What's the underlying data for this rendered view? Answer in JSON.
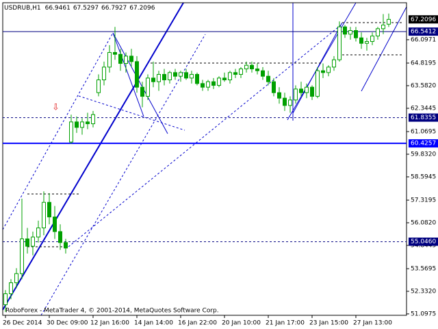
{
  "chart_data": {
    "type": "candlestick",
    "title": "USDRUB,H1",
    "header_values": [
      66.9461,
      67.5297,
      66.7927,
      67.2096
    ],
    "footer": "RoboForex - MetaTrader 4, © 2001-2014, MetaQuotes Software Corp.",
    "categories": [
      "26 Dec 2014",
      null,
      null,
      null,
      null,
      null,
      null,
      null,
      "30 Dec 09:00",
      null,
      null,
      null,
      null,
      null,
      null,
      null,
      "12 Jan 16:00",
      null,
      null,
      null,
      null,
      null,
      null,
      null,
      "14 Jan 14:00",
      null,
      null,
      null,
      null,
      null,
      null,
      null,
      "16 Jan 22:00",
      null,
      null,
      null,
      null,
      null,
      null,
      null,
      "20 Jan 10:00",
      null,
      null,
      null,
      null,
      null,
      null,
      null,
      "21 Jan 17:00",
      null,
      null,
      null,
      null,
      null,
      null,
      null,
      "23 Jan 15:00",
      null,
      null,
      null,
      null,
      null,
      null,
      null,
      "27 Jan 13:00",
      null,
      null,
      null,
      null,
      null,
      null
    ],
    "open": [
      51.6,
      52.2,
      52.8,
      53.3,
      55.2,
      54.8,
      55.3,
      55.8,
      57.2,
      56.4,
      55.6,
      55.0,
      60.5,
      61.6,
      61.3,
      61.6,
      61.5,
      63.2,
      63.9,
      64.6,
      65.4,
      65.3,
      64.8,
      65.2,
      64.9,
      63.5,
      63.0,
      64.0,
      63.8,
      64.2,
      63.9,
      64.3,
      64.1,
      64.3,
      64.0,
      64.2,
      63.7,
      63.5,
      63.8,
      63.6,
      64.0,
      63.9,
      64.3,
      64.2,
      64.5,
      64.7,
      64.5,
      64.4,
      64.1,
      63.8,
      63.2,
      62.9,
      62.5,
      62.8,
      63.4,
      63.2,
      63.5,
      63.0,
      64.4,
      64.3,
      64.6,
      65.0,
      66.8,
      66.4,
      66.6,
      66.2,
      65.9,
      66.0,
      66.3,
      66.7,
      66.9461
    ],
    "high": [
      52.4,
      53.0,
      53.6,
      57.4,
      55.8,
      55.6,
      56.2,
      57.8,
      57.7,
      57.0,
      56.0,
      55.2,
      62.0,
      61.9,
      61.8,
      62.1,
      62.2,
      64.2,
      64.9,
      65.8,
      66.8,
      65.6,
      65.4,
      65.6,
      65.2,
      63.8,
      64.2,
      64.9,
      64.4,
      64.5,
      64.4,
      64.5,
      64.4,
      64.5,
      64.4,
      64.3,
      63.9,
      63.9,
      64.0,
      64.1,
      64.3,
      64.4,
      64.5,
      64.6,
      64.9,
      64.9,
      64.8,
      64.6,
      64.4,
      64.0,
      63.5,
      63.2,
      63.0,
      63.6,
      63.8,
      63.7,
      63.6,
      64.6,
      64.8,
      64.7,
      65.2,
      67.1,
      66.9,
      66.8,
      66.8,
      66.5,
      66.2,
      66.5,
      66.8,
      67.5,
      67.5297
    ],
    "low": [
      51.2,
      51.9,
      52.5,
      53.0,
      54.4,
      54.3,
      55.0,
      55.4,
      56.0,
      55.2,
      54.6,
      54.4,
      60.4,
      61.0,
      60.9,
      61.2,
      61.3,
      63.0,
      63.6,
      64.3,
      65.0,
      64.4,
      64.3,
      64.6,
      63.2,
      62.4,
      62.8,
      63.5,
      63.3,
      63.6,
      63.7,
      63.9,
      63.8,
      63.9,
      63.7,
      63.6,
      63.3,
      63.3,
      63.4,
      63.5,
      63.8,
      63.7,
      64.0,
      64.0,
      64.3,
      64.3,
      64.2,
      63.9,
      63.6,
      63.0,
      62.6,
      62.2,
      62.1,
      62.6,
      63.0,
      62.9,
      62.8,
      62.9,
      64.0,
      64.1,
      64.4,
      64.9,
      66.2,
      66.1,
      66.0,
      65.6,
      65.5,
      65.8,
      66.1,
      66.4,
      66.7927
    ],
    "close": [
      52.2,
      52.8,
      53.3,
      55.2,
      54.8,
      55.3,
      55.8,
      57.2,
      56.4,
      55.6,
      55.0,
      54.7,
      61.6,
      61.3,
      61.6,
      61.5,
      62.0,
      63.9,
      64.6,
      65.4,
      65.3,
      64.8,
      65.2,
      64.9,
      63.5,
      63.0,
      64.0,
      63.8,
      64.2,
      63.9,
      64.3,
      64.1,
      64.3,
      64.0,
      64.2,
      63.7,
      63.5,
      63.8,
      63.6,
      64.0,
      63.9,
      64.3,
      64.2,
      64.5,
      64.7,
      64.5,
      64.4,
      64.1,
      63.8,
      63.2,
      62.9,
      62.5,
      62.8,
      63.4,
      63.2,
      63.5,
      63.0,
      64.4,
      64.3,
      64.6,
      65.0,
      66.8,
      66.4,
      66.6,
      66.2,
      65.9,
      66.0,
      66.3,
      66.7,
      66.9,
      67.2096
    ],
    "color": "#00a000",
    "ylim": [
      51.02,
      68.12
    ],
    "yticks": [
      {
        "value": 51.0975,
        "label": "51.0975"
      },
      {
        "value": 52.332,
        "label": "52.3320"
      },
      53.5695,
      {
        "value": 54.8445,
        "label": "54.8445"
      },
      {
        "value": 56.082,
        "label": "56.0820"
      },
      57.3195,
      58.5945,
      {
        "value": 59.832,
        "label": "59.8320"
      },
      61.0695,
      62.3445,
      {
        "value": 63.582,
        "label": "63.5820"
      },
      64.8195,
      66.0971
    ],
    "levels": [
      {
        "value": 66.5412,
        "color": "#000080"
      },
      {
        "value": 61.8355,
        "color": "#000080"
      },
      {
        "value": 60.4257,
        "color": "#0000ff"
      },
      {
        "value": 55.046,
        "label": "55.0460",
        "color": "#000080"
      }
    ],
    "current_price": 67.2096
  }
}
